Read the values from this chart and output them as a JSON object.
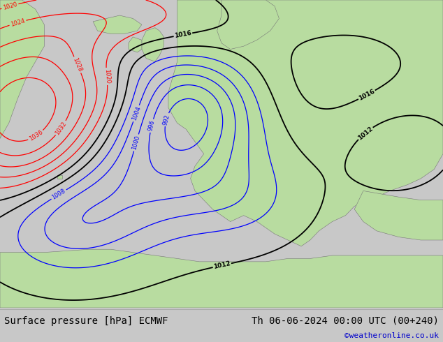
{
  "title_left": "Surface pressure [hPa] ECMWF",
  "title_right": "Th 06-06-2024 00:00 UTC (00+240)",
  "copyright": "©weatheronline.co.uk",
  "bg_color": "#c8c8c8",
  "land_color": "#b8dca0",
  "sea_color": "#cccccc",
  "bottom_bar_color": "#e0e0e0",
  "font_family": "monospace",
  "title_fontsize": 10,
  "copyright_color": "#0000cc",
  "fig_width": 6.34,
  "fig_height": 4.9
}
